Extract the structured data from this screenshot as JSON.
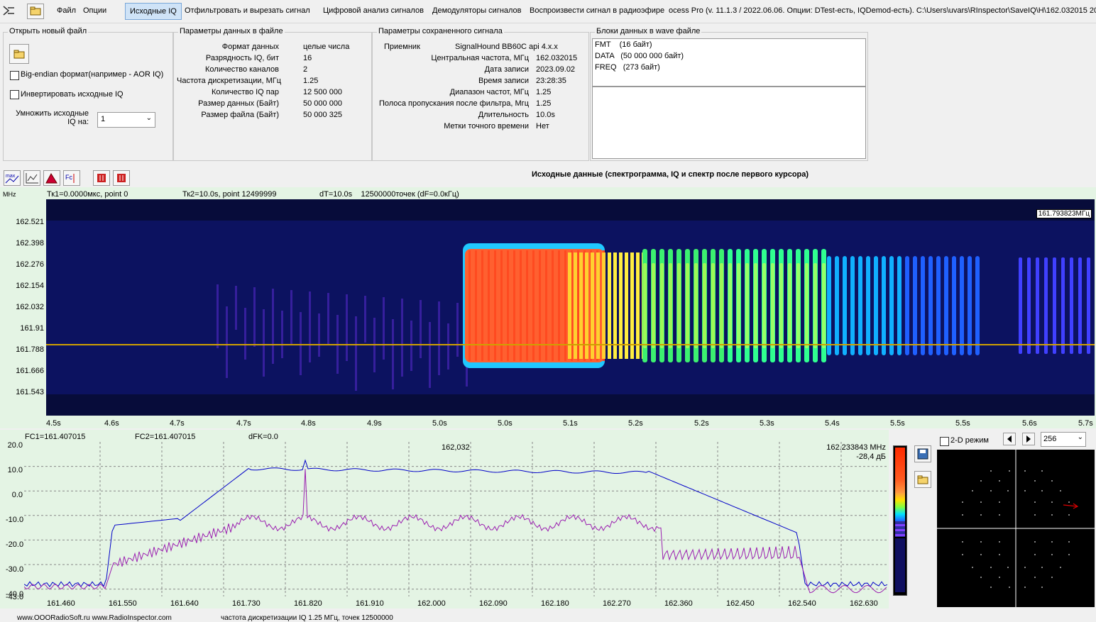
{
  "menu": {
    "file": "Файл",
    "options": "Опции",
    "tab_source": "Исходные IQ",
    "tab_filter": "Отфильтровать и вырезать сигнал",
    "tab_digital": "Цифровой анализ сигналов",
    "tab_demod": "Демодуляторы сигналов",
    "tab_play": "Воспроизвести сигнал в радиоэфире",
    "title": "ocess Pro (v. 11.1.3 / 2022.06.06. Опции: DTest-есть, IQDemod-есть). C:\\Users\\uvars\\RInspector\\SaveIQ\\H\\162.032015 20"
  },
  "open_file": {
    "title": "Открыть новый файл",
    "big_endian": "Big-endian формат(например - AOR IQ)",
    "invert": "Инвертировать исходные IQ",
    "multiply_label": "Умножить исходные IQ на:",
    "multiply_value": "1"
  },
  "file_params": {
    "title": "Параметры данных в файле",
    "rows": [
      {
        "k": "Формат данных",
        "v": "целые числа"
      },
      {
        "k": "Разрядность IQ, бит",
        "v": "16"
      },
      {
        "k": "Количество каналов",
        "v": "2"
      },
      {
        "k": "Частота дискретизации, МГц",
        "v": "1.25"
      },
      {
        "k": "Количество IQ пар",
        "v": "12 500 000"
      },
      {
        "k": "Размер данных (Байт)",
        "v": "50 000 000"
      },
      {
        "k": "Размер файла (Байт)",
        "v": "50 000 325"
      }
    ]
  },
  "saved_params": {
    "title": "Параметры сохраненного сигнала",
    "receiver_label": "Приемник",
    "receiver_value": "SignalHound BB60C api 4.x.x",
    "rows": [
      {
        "k": "Центральная частота, МГц",
        "v": "162.032015"
      },
      {
        "k": "Дата записи",
        "v": "2023.09.02"
      },
      {
        "k": "Время записи",
        "v": "23:28:35"
      },
      {
        "k": "Диапазон частот, МГц",
        "v": "1.25"
      },
      {
        "k": "Полоса пропускания после фильтра, Мгц",
        "v": "1.25"
      },
      {
        "k": "Длительность",
        "v": "10.0s"
      },
      {
        "k": "Метки точного времени",
        "v": "Нет"
      }
    ]
  },
  "wave_blocks": {
    "title": "Блоки данных в wave файле",
    "items": [
      "FMT    (16 байт)",
      "DATA   (50 000 000 байт)",
      "FREQ   (273 байт)"
    ]
  },
  "spectrogram": {
    "heading": "Исходные данные (спектрограмма, IQ и спектр после первого курсора)",
    "unit": "MHz",
    "tk1": "Тк1=0.0000мкс, point 0",
    "tk2": "Тк2=10.0s, point 12499999",
    "dt": "dT=10.0s    12500000точек (dF=0.0кГц)",
    "marker": "161.793823МГц",
    "y_ticks": [
      "162.521",
      "162.398",
      "162.276",
      "162.154",
      "162.032",
      "161.91",
      "161.788",
      "161.666",
      "161.543"
    ],
    "x_ticks": [
      "4.5s",
      "4.6s",
      "4.7s",
      "4.7s",
      "4.8s",
      "4.9s",
      "5.0s",
      "5.0s",
      "5.1s",
      "5.2s",
      "5.2s",
      "5.3s",
      "5.4s",
      "5.5s",
      "5.5s",
      "5.6s",
      "5.7s"
    ]
  },
  "spectrum": {
    "fc1": "FC1=161.407015",
    "fc2": "FC2=161.407015",
    "dfk": "dFK=0.0",
    "center": "162,032",
    "cursor_freq": "162.233843 MHz",
    "cursor_level": "-28,4 дБ",
    "y_ticks": [
      "20.0",
      "10.0",
      "0.0",
      "-10.0",
      "-20.0",
      "-30.0",
      "-40.0",
      "-43.0"
    ],
    "x_ticks": [
      "161.460",
      "161.550",
      "161.640",
      "161.730",
      "161.820",
      "161.910",
      "162.000",
      "162.090",
      "162.180",
      "162.270",
      "162.360",
      "162.450",
      "162.540",
      "162.630"
    ]
  },
  "iq": {
    "mode_label": "2-D режим",
    "points_value": "256"
  },
  "status": {
    "site": "www.OOORadioSoft.ru   www.RadioInspector.com",
    "info": "частота дискретизации IQ 1.25 МГц, точек 12500000"
  },
  "colors": {
    "accent": "#cfe3f7",
    "spectrum_max": "#0000c8",
    "spectrum_cur": "#9b1fb0",
    "cursor_line": "#d0a000"
  }
}
